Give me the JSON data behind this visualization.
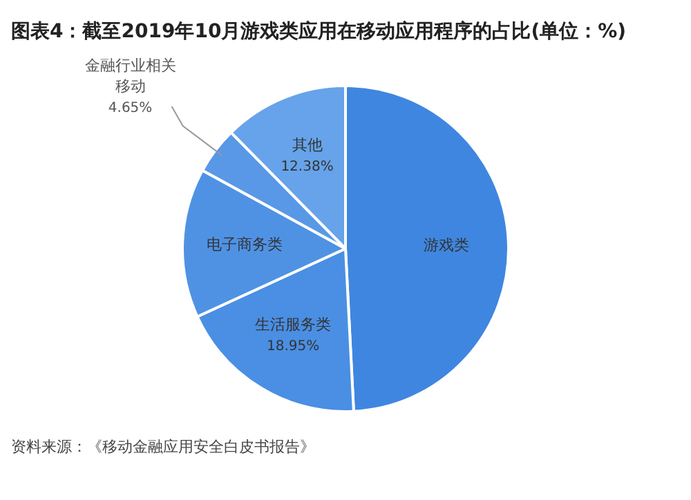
{
  "chart_data": {
    "type": "pie",
    "title": "图表4：截至2019年10月游戏类应用在移动应用程序的占比(单位：%)",
    "categories": [
      "游戏类",
      "生活服务类",
      "电子商务类",
      "金融行业相关移动",
      "其他"
    ],
    "values": [
      49.2,
      18.95,
      14.82,
      4.65,
      12.38
    ],
    "value_labels": [
      null,
      "18.95%",
      null,
      "4.65%",
      "12.38%"
    ],
    "colors": [
      "#3f86e0",
      "#4a8fe3",
      "#4f92e4",
      "#5898e6",
      "#66a3ea"
    ],
    "annotations": [
      "资料来源：《移动金融应用安全白皮书报告》"
    ],
    "legend": false
  }
}
